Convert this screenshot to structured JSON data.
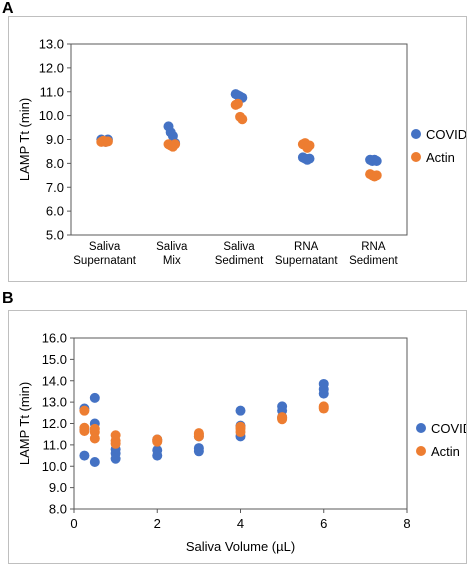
{
  "panels": {
    "a_label": "A",
    "b_label": "B"
  },
  "chart_data": [
    {
      "type": "scatter",
      "panel": "A",
      "xlabel": "",
      "ylabel": "LAMP Tt (min)",
      "ylim": [
        5.0,
        13.0
      ],
      "yticks": [
        "5.0",
        "6.0",
        "7.0",
        "8.0",
        "9.0",
        "10.0",
        "11.0",
        "12.0",
        "13.0"
      ],
      "categories": [
        [
          "Saliva",
          "Supernatant"
        ],
        [
          "Saliva",
          "Mix"
        ],
        [
          "Saliva",
          "Sediment"
        ],
        [
          "RNA",
          "Supernatant"
        ],
        [
          "RNA",
          "Sediment"
        ]
      ],
      "grid": false,
      "legend": "right",
      "series": [
        {
          "name": "COVID",
          "color": "#4472c4",
          "points": [
            [
              1,
              9.0
            ],
            [
              1,
              8.95
            ],
            [
              1,
              8.9
            ],
            [
              1,
              9.0
            ],
            [
              2,
              9.55
            ],
            [
              2,
              9.3
            ],
            [
              2,
              9.15
            ],
            [
              2,
              8.85
            ],
            [
              3,
              10.9
            ],
            [
              3,
              10.85
            ],
            [
              3,
              10.8
            ],
            [
              3,
              10.75
            ],
            [
              4,
              8.25
            ],
            [
              4,
              8.2
            ],
            [
              4,
              8.15
            ],
            [
              4,
              8.2
            ],
            [
              5,
              8.15
            ],
            [
              5,
              8.1
            ],
            [
              5,
              8.15
            ],
            [
              5,
              8.1
            ]
          ]
        },
        {
          "name": "Actin",
          "color": "#ed7d31",
          "points": [
            [
              1,
              8.9
            ],
            [
              1,
              8.95
            ],
            [
              1,
              8.9
            ],
            [
              1,
              8.92
            ],
            [
              2,
              8.8
            ],
            [
              2,
              8.75
            ],
            [
              2,
              8.7
            ],
            [
              2,
              8.8
            ],
            [
              3,
              10.45
            ],
            [
              3,
              10.5
            ],
            [
              3,
              9.95
            ],
            [
              3,
              9.85
            ],
            [
              4,
              8.8
            ],
            [
              4,
              8.85
            ],
            [
              4,
              8.65
            ],
            [
              4,
              8.75
            ],
            [
              5,
              7.55
            ],
            [
              5,
              7.5
            ],
            [
              5,
              7.45
            ],
            [
              5,
              7.5
            ]
          ]
        }
      ]
    },
    {
      "type": "scatter",
      "panel": "B",
      "xlabel": "Saliva Volume (µL)",
      "ylabel": "LAMP Tt (min)",
      "xlim": [
        0,
        8
      ],
      "ylim": [
        8.0,
        16.0
      ],
      "xticks": [
        "0",
        "2",
        "4",
        "6",
        "8"
      ],
      "yticks": [
        "8.0",
        "9.0",
        "10.0",
        "11.0",
        "12.0",
        "13.0",
        "14.0",
        "15.0",
        "16.0"
      ],
      "grid": false,
      "legend": "right",
      "series": [
        {
          "name": "COVID",
          "color": "#4472c4",
          "points": [
            [
              0.25,
              12.7
            ],
            [
              0.25,
              10.5
            ],
            [
              0.25,
              11.7
            ],
            [
              0.5,
              13.2
            ],
            [
              0.5,
              12.0
            ],
            [
              0.5,
              10.2
            ],
            [
              1,
              10.8
            ],
            [
              1,
              10.6
            ],
            [
              1,
              10.35
            ],
            [
              2,
              11.25
            ],
            [
              2,
              10.75
            ],
            [
              2,
              10.5
            ],
            [
              3,
              10.85
            ],
            [
              3,
              10.7
            ],
            [
              3,
              11.4
            ],
            [
              4,
              12.6
            ],
            [
              4,
              11.4
            ],
            [
              4,
              11.9
            ],
            [
              5,
              12.8
            ],
            [
              5,
              12.6
            ],
            [
              5,
              12.3
            ],
            [
              6,
              13.85
            ],
            [
              6,
              13.6
            ],
            [
              6,
              13.4
            ]
          ]
        },
        {
          "name": "Actin",
          "color": "#ed7d31",
          "points": [
            [
              0.25,
              12.6
            ],
            [
              0.25,
              11.8
            ],
            [
              0.25,
              11.65
            ],
            [
              0.5,
              11.75
            ],
            [
              0.5,
              11.6
            ],
            [
              0.5,
              11.3
            ],
            [
              1,
              11.45
            ],
            [
              1,
              11.2
            ],
            [
              1,
              11.05
            ],
            [
              2,
              11.2
            ],
            [
              2,
              11.15
            ],
            [
              2,
              11.25
            ],
            [
              3,
              11.55
            ],
            [
              3,
              11.5
            ],
            [
              3,
              11.4
            ],
            [
              4,
              11.85
            ],
            [
              4,
              11.75
            ],
            [
              4,
              11.6
            ],
            [
              5,
              12.3
            ],
            [
              5,
              12.2
            ],
            [
              5,
              12.25
            ],
            [
              6,
              12.8
            ],
            [
              6,
              12.75
            ],
            [
              6,
              12.7
            ]
          ]
        }
      ]
    }
  ]
}
